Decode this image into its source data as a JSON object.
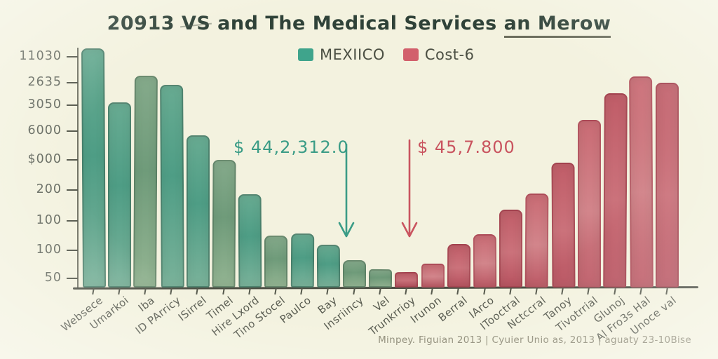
{
  "title": {
    "prefix": "20913 ",
    "vs": "VS",
    "middle": " and The Medical Services ",
    "underlined": "an Merow"
  },
  "legend": [
    {
      "label": "MEXIICO",
      "color": "#3fa48c"
    },
    {
      "label": "Cost-6",
      "color": "#d2606c"
    }
  ],
  "annotations": {
    "left": {
      "text": "$ 44,2,312.0",
      "color": "#3a9c86"
    },
    "right": {
      "text": "$ 45,7.800",
      "color": "#c9545f"
    }
  },
  "footer": "Minpey. Figuian 2013 | Cyuier Unio as, 2013 | aguaty 23-10Bise",
  "chart_data": {
    "type": "bar",
    "title": "20913 VS and The Medical Services an Merow",
    "xlabel": "",
    "ylabel": "",
    "legend_position": "top-center",
    "grid": false,
    "axis_note": "hand-drawn chart; y tick labels are non-monotonic as printed",
    "y_tick_labels": [
      "11030",
      "2635",
      "3050",
      "6000",
      "$000",
      "200",
      "100",
      "100",
      "50"
    ],
    "value_units": "relative height (px, estimated from drawing)",
    "ylim": [
      0,
      340
    ],
    "series_names": [
      "MEXIICO",
      "Cost-6"
    ],
    "bars": [
      {
        "label": "Websece",
        "series": "MEXIICO",
        "value": 337
      },
      {
        "label": "Umarkoi",
        "series": "MEXIICO",
        "value": 260
      },
      {
        "label": "Iba",
        "series": "MEXIICO",
        "value": 298
      },
      {
        "label": "ID PArricy",
        "series": "MEXIICO",
        "value": 285
      },
      {
        "label": "ISirrel",
        "series": "MEXIICO",
        "value": 213
      },
      {
        "label": "Timel",
        "series": "MEXIICO",
        "value": 178
      },
      {
        "label": "Hire Lxord",
        "series": "MEXIICO",
        "value": 129
      },
      {
        "label": "Tino Stocel",
        "series": "MEXIICO",
        "value": 70
      },
      {
        "label": "Paulco",
        "series": "MEXIICO",
        "value": 73
      },
      {
        "label": "Bay",
        "series": "MEXIICO",
        "value": 57
      },
      {
        "label": "Insriincy",
        "series": "MEXIICO",
        "value": 35
      },
      {
        "label": "Vel",
        "series": "MEXIICO",
        "value": 22
      },
      {
        "label": "Trunkrrioy",
        "series": "Cost-6",
        "value": 18
      },
      {
        "label": "Irunon",
        "series": "Cost-6",
        "value": 30
      },
      {
        "label": "Berral",
        "series": "Cost-6",
        "value": 58
      },
      {
        "label": "IArco",
        "series": "Cost-6",
        "value": 72
      },
      {
        "label": "ITooctral",
        "series": "Cost-6",
        "value": 107
      },
      {
        "label": "Nctccral",
        "series": "Cost-6",
        "value": 130
      },
      {
        "label": "Tanoy",
        "series": "Cost-6",
        "value": 174
      },
      {
        "label": "Tivotrrial",
        "series": "Cost-6",
        "value": 235
      },
      {
        "label": "Glunoj",
        "series": "Cost-6",
        "value": 273
      },
      {
        "label": "Al Fro3s Hal",
        "series": "Cost-6",
        "value": 297
      },
      {
        "label": "Unoce val",
        "series": "Cost-6",
        "value": 288
      }
    ]
  }
}
